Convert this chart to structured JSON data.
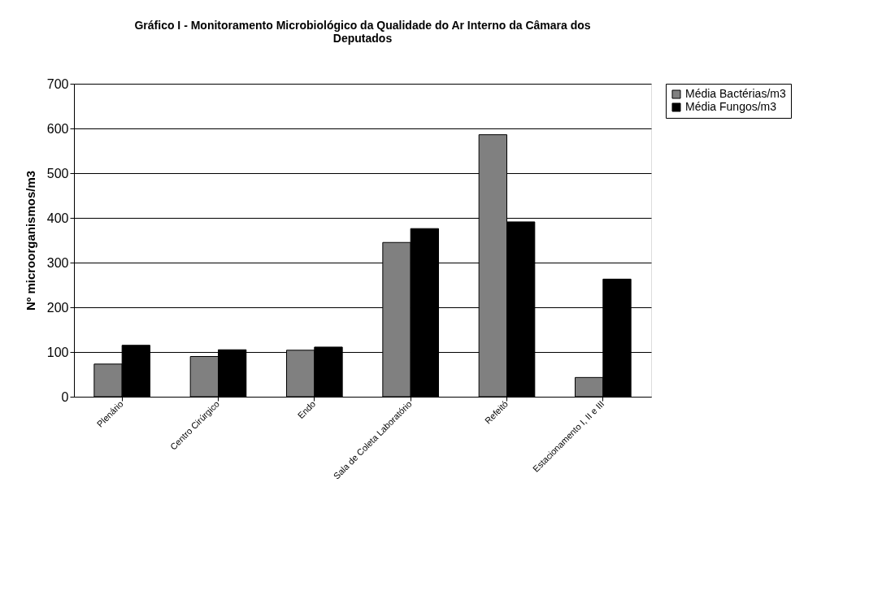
{
  "chart_data": {
    "type": "bar",
    "title": [
      "Gráfico I - Monitoramento Microbiológico da Qualidade do Ar Interno da Câmara dos",
      "Deputados"
    ],
    "ylabel": "Nº microorganismos/m3",
    "categories": [
      "Plenário",
      "Centro Cirúrgico",
      "Endo",
      "Sala de Coleta Laboratório",
      "Refeitó",
      "Estacionamento I, II e III"
    ],
    "series": [
      {
        "name": "Média Bactérias/m3",
        "color": "#808080",
        "values": [
          73,
          90,
          104,
          345,
          586,
          43
        ]
      },
      {
        "name": "Média Fungos/m3",
        "color": "#000000",
        "values": [
          115,
          105,
          111,
          376,
          391,
          263
        ]
      }
    ],
    "ylim": [
      0,
      700
    ],
    "yticks": [
      0,
      100,
      200,
      300,
      400,
      500,
      600,
      700
    ],
    "grid": "y",
    "legend": "right"
  }
}
